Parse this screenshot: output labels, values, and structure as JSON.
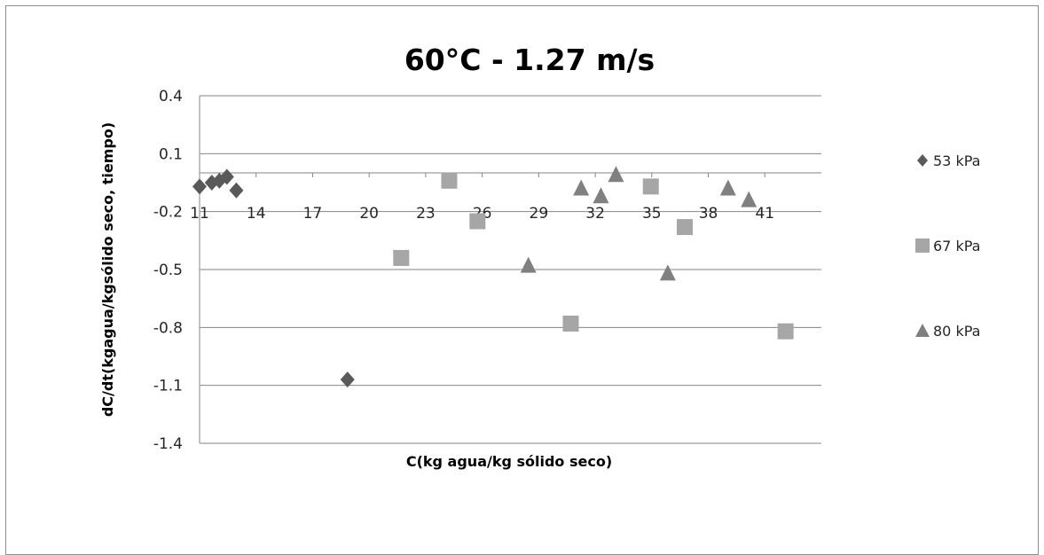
{
  "chart_data": {
    "type": "scatter",
    "title": "60°C - 1.27 m/s",
    "xlabel": "C(kg agua/kg sólido seco)",
    "ylabel": "dC/dt(kgagua/kgsólido seco, tiempo)",
    "xlim": [
      11,
      44
    ],
    "ylim": [
      -1.4,
      0.4
    ],
    "xticks": [
      "11",
      "14",
      "17",
      "20",
      "23",
      "26",
      "29",
      "32",
      "35",
      "38",
      "41"
    ],
    "yticks": [
      "0.4",
      "0.1",
      "-0.2",
      "-0.5",
      "-0.8",
      "-1.1",
      "-1.4"
    ],
    "grid": true,
    "legend_position": "right",
    "series": [
      {
        "name": "53 kPa",
        "marker": "diamond",
        "color": "#595959",
        "points": [
          {
            "x": 11.0,
            "y": -0.07
          },
          {
            "x": 11.65,
            "y": -0.05
          },
          {
            "x": 12.05,
            "y": -0.04
          },
          {
            "x": 12.45,
            "y": -0.02
          },
          {
            "x": 12.95,
            "y": -0.09
          },
          {
            "x": 18.85,
            "y": -1.07
          }
        ]
      },
      {
        "name": "67 kPa",
        "marker": "square",
        "color": "#a6a6a6",
        "points": [
          {
            "x": 21.7,
            "y": -0.44
          },
          {
            "x": 24.25,
            "y": -0.04
          },
          {
            "x": 25.75,
            "y": -0.25
          },
          {
            "x": 30.7,
            "y": -0.78
          },
          {
            "x": 34.95,
            "y": -0.07
          },
          {
            "x": 36.75,
            "y": -0.28
          },
          {
            "x": 42.1,
            "y": -0.82
          }
        ]
      },
      {
        "name": "80 kPa",
        "marker": "triangle",
        "color": "#808080",
        "points": [
          {
            "x": 28.45,
            "y": -0.48
          },
          {
            "x": 31.25,
            "y": -0.08
          },
          {
            "x": 32.3,
            "y": -0.12
          },
          {
            "x": 33.1,
            "y": -0.01
          },
          {
            "x": 35.85,
            "y": -0.52
          },
          {
            "x": 39.05,
            "y": -0.08
          },
          {
            "x": 40.15,
            "y": -0.14
          }
        ]
      }
    ]
  }
}
